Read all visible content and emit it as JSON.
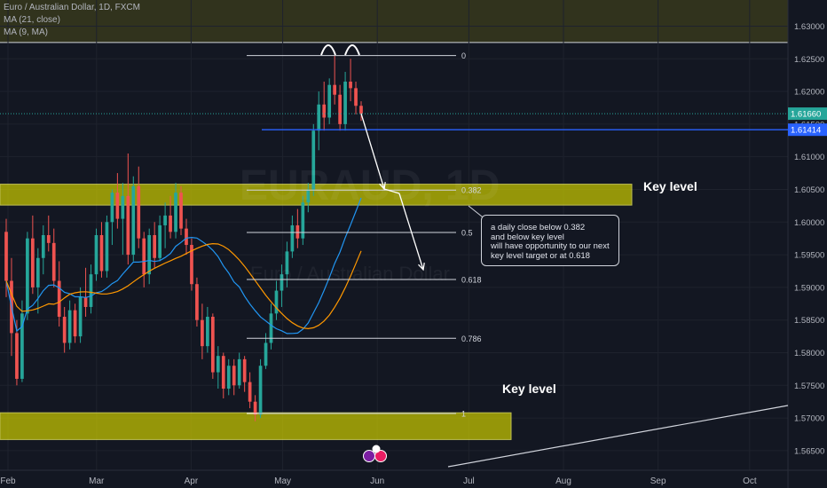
{
  "header": {
    "symbol": "Euro / Australian Dollar, 1D, FXCM",
    "ma1": "MA (21, close)",
    "ma2": "MA (9, MA)"
  },
  "watermark": {
    "main": "EURAUD, 1D",
    "sub": "Euro / Australian Dollar"
  },
  "annotation": {
    "lines": [
      "a daily close below 0.382",
      "and below key level",
      "will have opportunity to our next",
      "key level target or at 0.618"
    ]
  },
  "key_labels": [
    "Key level",
    "Key level"
  ],
  "colors": {
    "background": "#131722",
    "bull": "#26a69a",
    "bear": "#ef5350",
    "zone": "#c8c800",
    "ma_fast": "#2196f3",
    "ma_slow": "#ff9800",
    "price_tag": "#26a69a",
    "blue_line": "#2962ff"
  },
  "chart_data": {
    "type": "candlestick",
    "title": "Euro / Australian Dollar, 1D, FXCM",
    "x_axis": {
      "ticks": [
        "Feb",
        "Mar",
        "Apr",
        "May",
        "Jun",
        "Jul",
        "Aug",
        "Sep",
        "Oct"
      ],
      "range": [
        "2020-02-01",
        "2020-10-15"
      ]
    },
    "y_axis": {
      "range": [
        1.562,
        1.634
      ],
      "ticks": [
        "1.63000",
        "1.62500",
        "1.62000",
        "1.61500",
        "1.61000",
        "1.60500",
        "1.60000",
        "1.59500",
        "1.59000",
        "1.58500",
        "1.58000",
        "1.57500",
        "1.57000",
        "1.56500"
      ],
      "position": "right"
    },
    "last_price": "1.61660",
    "blue_line_price": "1.61414",
    "fibonacci": [
      {
        "level": "0",
        "price": 1.6255
      },
      {
        "level": "0.382",
        "price": 1.6049
      },
      {
        "level": "0.5",
        "price": 1.5984
      },
      {
        "level": "0.618",
        "price": 1.5912
      },
      {
        "level": "0.786",
        "price": 1.5822
      },
      {
        "level": "1",
        "price": 1.5707
      }
    ],
    "key_levels": [
      {
        "label": "Key level",
        "from": 1.6026,
        "to": 1.6058
      },
      {
        "label": "Key level",
        "from": 1.5667,
        "to": 1.5708
      }
    ],
    "candles": [
      {
        "o": 1.5985,
        "h": 1.6005,
        "l": 1.5885,
        "c": 1.591
      },
      {
        "o": 1.591,
        "h": 1.5945,
        "l": 1.5795,
        "c": 1.583
      },
      {
        "o": 1.583,
        "h": 1.585,
        "l": 1.575,
        "c": 1.576
      },
      {
        "o": 1.576,
        "h": 1.588,
        "l": 1.5755,
        "c": 1.586
      },
      {
        "o": 1.586,
        "h": 1.5985,
        "l": 1.585,
        "c": 1.5975
      },
      {
        "o": 1.5975,
        "h": 1.601,
        "l": 1.589,
        "c": 1.59
      },
      {
        "o": 1.59,
        "h": 1.596,
        "l": 1.586,
        "c": 1.5945
      },
      {
        "o": 1.5945,
        "h": 1.5995,
        "l": 1.592,
        "c": 1.598
      },
      {
        "o": 1.598,
        "h": 1.601,
        "l": 1.5955,
        "c": 1.5968
      },
      {
        "o": 1.5968,
        "h": 1.599,
        "l": 1.59,
        "c": 1.591
      },
      {
        "o": 1.591,
        "h": 1.594,
        "l": 1.584,
        "c": 1.5855
      },
      {
        "o": 1.5855,
        "h": 1.587,
        "l": 1.58,
        "c": 1.5815
      },
      {
        "o": 1.5815,
        "h": 1.588,
        "l": 1.5805,
        "c": 1.5865
      },
      {
        "o": 1.5865,
        "h": 1.5875,
        "l": 1.5815,
        "c": 1.5825
      },
      {
        "o": 1.5825,
        "h": 1.59,
        "l": 1.5815,
        "c": 1.5885
      },
      {
        "o": 1.5885,
        "h": 1.593,
        "l": 1.5855,
        "c": 1.587
      },
      {
        "o": 1.587,
        "h": 1.5935,
        "l": 1.586,
        "c": 1.592
      },
      {
        "o": 1.592,
        "h": 1.599,
        "l": 1.591,
        "c": 1.598
      },
      {
        "o": 1.598,
        "h": 1.6,
        "l": 1.5915,
        "c": 1.5925
      },
      {
        "o": 1.5925,
        "h": 1.601,
        "l": 1.5915,
        "c": 1.6
      },
      {
        "o": 1.6,
        "h": 1.605,
        "l": 1.5965,
        "c": 1.6045
      },
      {
        "o": 1.6045,
        "h": 1.6075,
        "l": 1.599,
        "c": 1.6005
      },
      {
        "o": 1.6005,
        "h": 1.606,
        "l": 1.595,
        "c": 1.604
      },
      {
        "o": 1.604,
        "h": 1.6105,
        "l": 1.5935,
        "c": 1.595
      },
      {
        "o": 1.595,
        "h": 1.607,
        "l": 1.594,
        "c": 1.6055
      },
      {
        "o": 1.6055,
        "h": 1.6085,
        "l": 1.596,
        "c": 1.5975
      },
      {
        "o": 1.5975,
        "h": 1.5985,
        "l": 1.59,
        "c": 1.592
      },
      {
        "o": 1.592,
        "h": 1.599,
        "l": 1.5905,
        "c": 1.598
      },
      {
        "o": 1.598,
        "h": 1.6,
        "l": 1.593,
        "c": 1.5945
      },
      {
        "o": 1.5945,
        "h": 1.601,
        "l": 1.594,
        "c": 1.5995
      },
      {
        "o": 1.5995,
        "h": 1.603,
        "l": 1.596,
        "c": 1.601
      },
      {
        "o": 1.601,
        "h": 1.604,
        "l": 1.5975,
        "c": 1.5985
      },
      {
        "o": 1.5985,
        "h": 1.606,
        "l": 1.5975,
        "c": 1.6045
      },
      {
        "o": 1.6045,
        "h": 1.6055,
        "l": 1.598,
        "c": 1.599
      },
      {
        "o": 1.599,
        "h": 1.6005,
        "l": 1.595,
        "c": 1.5965
      },
      {
        "o": 1.5965,
        "h": 1.5975,
        "l": 1.5895,
        "c": 1.5905
      },
      {
        "o": 1.5905,
        "h": 1.5915,
        "l": 1.584,
        "c": 1.585
      },
      {
        "o": 1.585,
        "h": 1.5875,
        "l": 1.579,
        "c": 1.581
      },
      {
        "o": 1.581,
        "h": 1.587,
        "l": 1.58,
        "c": 1.5855
      },
      {
        "o": 1.5855,
        "h": 1.586,
        "l": 1.576,
        "c": 1.577
      },
      {
        "o": 1.577,
        "h": 1.581,
        "l": 1.5745,
        "c": 1.5795
      },
      {
        "o": 1.5795,
        "h": 1.58,
        "l": 1.573,
        "c": 1.5745
      },
      {
        "o": 1.5745,
        "h": 1.579,
        "l": 1.5735,
        "c": 1.578
      },
      {
        "o": 1.578,
        "h": 1.579,
        "l": 1.5735,
        "c": 1.575
      },
      {
        "o": 1.575,
        "h": 1.58,
        "l": 1.5745,
        "c": 1.579
      },
      {
        "o": 1.579,
        "h": 1.5795,
        "l": 1.574,
        "c": 1.5755
      },
      {
        "o": 1.5755,
        "h": 1.577,
        "l": 1.5715,
        "c": 1.5725
      },
      {
        "o": 1.5725,
        "h": 1.5735,
        "l": 1.5695,
        "c": 1.5705
      },
      {
        "o": 1.5705,
        "h": 1.579,
        "l": 1.57,
        "c": 1.578
      },
      {
        "o": 1.578,
        "h": 1.583,
        "l": 1.5775,
        "c": 1.5815
      },
      {
        "o": 1.5815,
        "h": 1.5875,
        "l": 1.5805,
        "c": 1.586
      },
      {
        "o": 1.586,
        "h": 1.591,
        "l": 1.585,
        "c": 1.5895
      },
      {
        "o": 1.5895,
        "h": 1.5935,
        "l": 1.587,
        "c": 1.592
      },
      {
        "o": 1.592,
        "h": 1.597,
        "l": 1.59,
        "c": 1.5955
      },
      {
        "o": 1.5955,
        "h": 1.601,
        "l": 1.5945,
        "c": 1.5995
      },
      {
        "o": 1.5995,
        "h": 1.602,
        "l": 1.596,
        "c": 1.5975
      },
      {
        "o": 1.5975,
        "h": 1.604,
        "l": 1.5965,
        "c": 1.603
      },
      {
        "o": 1.603,
        "h": 1.606,
        "l": 1.6015,
        "c": 1.605
      },
      {
        "o": 1.605,
        "h": 1.615,
        "l": 1.604,
        "c": 1.614
      },
      {
        "o": 1.614,
        "h": 1.62,
        "l": 1.611,
        "c": 1.618
      },
      {
        "o": 1.618,
        "h": 1.6215,
        "l": 1.614,
        "c": 1.616
      },
      {
        "o": 1.616,
        "h": 1.622,
        "l": 1.615,
        "c": 1.621
      },
      {
        "o": 1.621,
        "h": 1.6255,
        "l": 1.618,
        "c": 1.6195
      },
      {
        "o": 1.6195,
        "h": 1.621,
        "l": 1.614,
        "c": 1.615
      },
      {
        "o": 1.615,
        "h": 1.623,
        "l": 1.614,
        "c": 1.6215
      },
      {
        "o": 1.6215,
        "h": 1.625,
        "l": 1.6185,
        "c": 1.6205
      },
      {
        "o": 1.6205,
        "h": 1.6215,
        "l": 1.6165,
        "c": 1.6178
      },
      {
        "o": 1.6178,
        "h": 1.6185,
        "l": 1.6155,
        "c": 1.6166
      }
    ]
  }
}
